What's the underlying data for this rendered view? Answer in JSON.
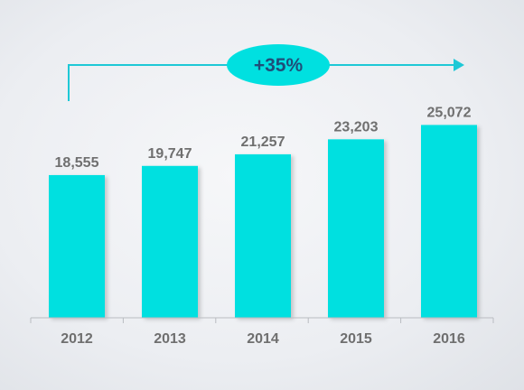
{
  "chart_data": {
    "type": "bar",
    "categories": [
      "2012",
      "2013",
      "2014",
      "2015",
      "2016"
    ],
    "values": [
      18555,
      19747,
      21257,
      23203,
      25072
    ],
    "value_labels": [
      "18,555",
      "19,747",
      "21,257",
      "23,203",
      "25,072"
    ],
    "title": "",
    "xlabel": "",
    "ylabel": "",
    "ylim": [
      0,
      27000
    ],
    "grid": false,
    "annotation": "+35%",
    "colors": {
      "bar": "#00e0e0",
      "arrow": "#1ec8d6",
      "badge": "#00e0e0",
      "badge_text": "#1f4e79",
      "label": "#6f6f6f"
    }
  }
}
